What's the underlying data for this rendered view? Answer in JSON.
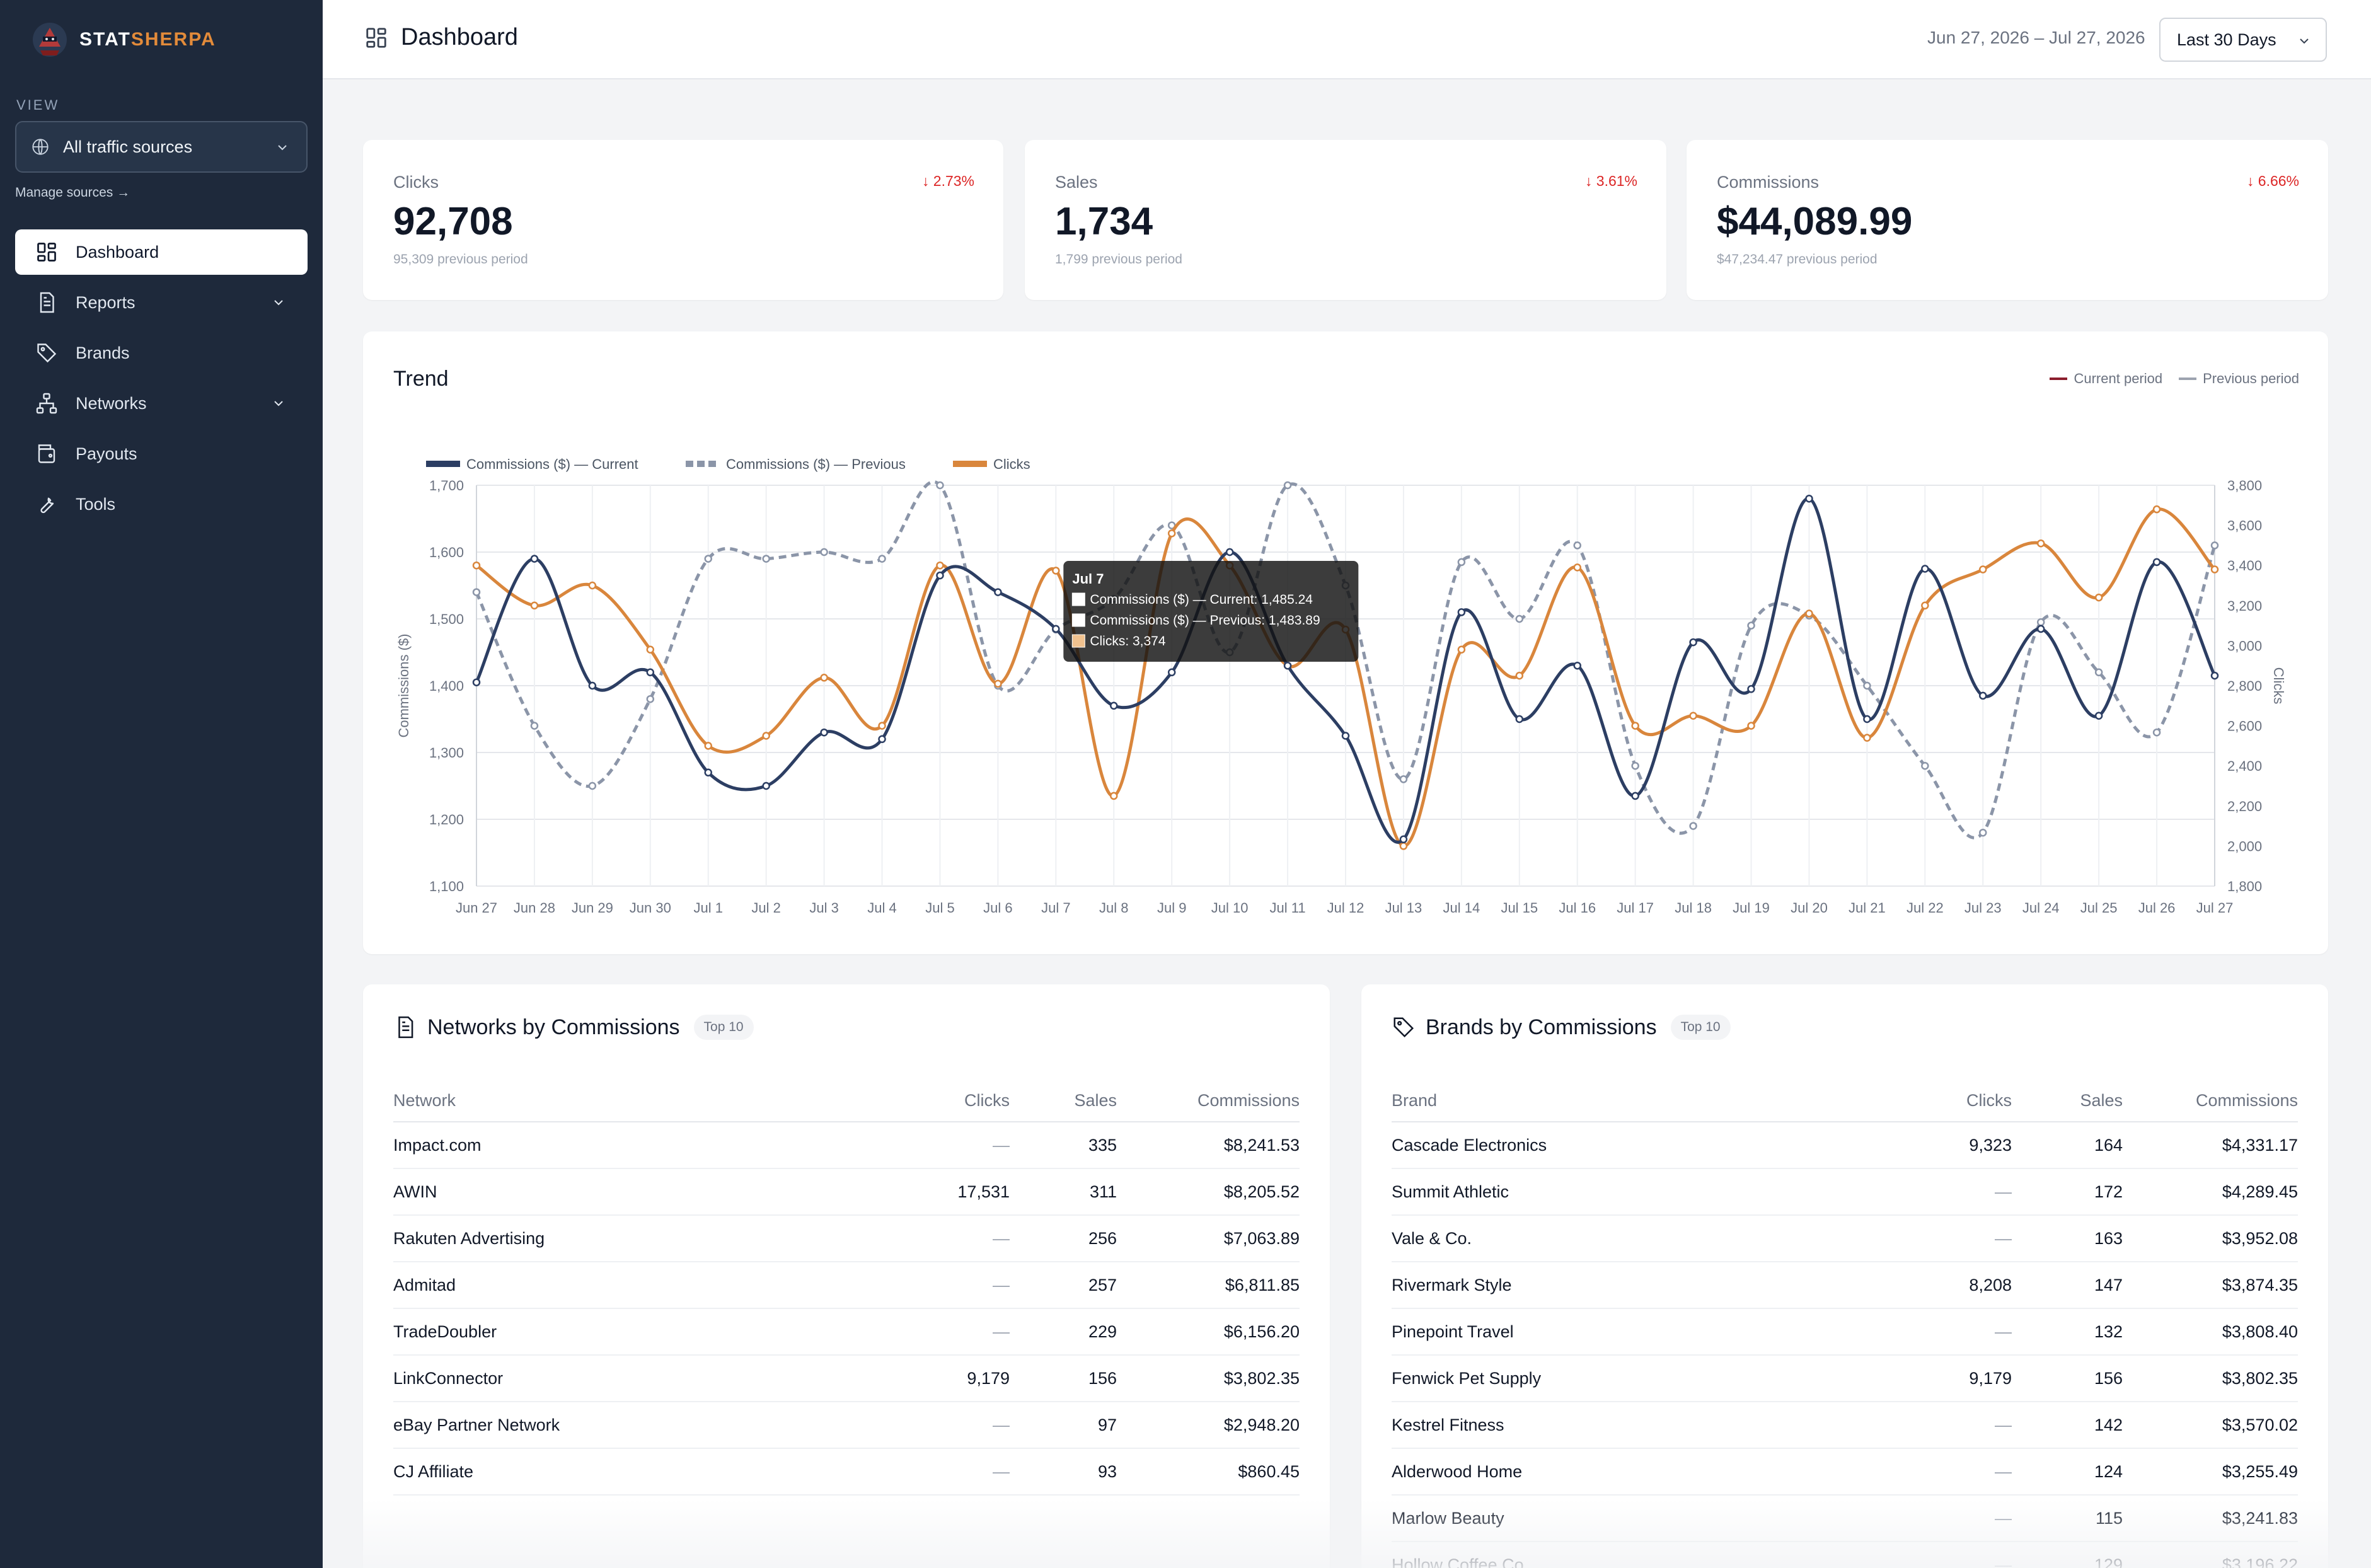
{
  "app": {
    "name_part1": "STAT",
    "name_part2": "SHERPA"
  },
  "sidebar": {
    "view_label": "VIEW",
    "source_select": "All traffic sources",
    "manage_sources": "Manage sources →",
    "items": [
      {
        "label": "Dashboard",
        "icon": "dashboard-icon"
      },
      {
        "label": "Reports",
        "icon": "document-icon"
      },
      {
        "label": "Brands",
        "icon": "tag-icon"
      },
      {
        "label": "Networks",
        "icon": "network-icon"
      },
      {
        "label": "Payouts",
        "icon": "wallet-icon"
      },
      {
        "label": "Tools",
        "icon": "wrench-icon"
      }
    ]
  },
  "header": {
    "title": "Dashboard",
    "date_range": "Jun 27, 2026 – Jul 27, 2026",
    "period": "Last 30 Days"
  },
  "stats": [
    {
      "label": "Clicks",
      "value": "92,708",
      "previous": "95,309 previous period",
      "delta": "↓ 2.73%"
    },
    {
      "label": "Sales",
      "value": "1,734",
      "previous": "1,799 previous period",
      "delta": "↓ 3.61%"
    },
    {
      "label": "Commissions",
      "value": "$44,089.99",
      "previous": "$47,234.47 previous period",
      "delta": "↓ 6.66%"
    }
  ],
  "trend": {
    "title": "Trend",
    "legend_current": "Current period",
    "legend_previous": "Previous period"
  },
  "colors": {
    "current": "#2c3e63",
    "previous": "#8b95a8",
    "clicks": "#d9863c",
    "sidebar": "#1e293b",
    "negative": "#dc2626"
  },
  "chart_data": {
    "type": "line",
    "x": [
      "Jun 27",
      "Jun 28",
      "Jun 29",
      "Jun 30",
      "Jul 1",
      "Jul 2",
      "Jul 3",
      "Jul 4",
      "Jul 5",
      "Jul 6",
      "Jul 7",
      "Jul 8",
      "Jul 9",
      "Jul 10",
      "Jul 11",
      "Jul 12",
      "Jul 13",
      "Jul 14",
      "Jul 15",
      "Jul 16",
      "Jul 17",
      "Jul 18",
      "Jul 19",
      "Jul 20",
      "Jul 21",
      "Jul 22",
      "Jul 23",
      "Jul 24",
      "Jul 25",
      "Jul 26",
      "Jul 27"
    ],
    "ylabel": "Commissions ($)",
    "y2label": "Clicks",
    "ylim": [
      1100,
      1700
    ],
    "y2lim": [
      1800,
      3800
    ],
    "y_ticks": [
      "1,100",
      "1,200",
      "1,300",
      "1,400",
      "1,500",
      "1,600",
      "1,700"
    ],
    "y2_ticks": [
      "1,800",
      "2,000",
      "2,200",
      "2,400",
      "2,600",
      "2,800",
      "3,000",
      "3,200",
      "3,400",
      "3,600",
      "3,800"
    ],
    "legend_position": "top-left",
    "grid": true,
    "series": [
      {
        "name": "Commissions ($) — Current",
        "axis": "left",
        "style": "solid",
        "values": [
          1405,
          1590,
          1400,
          1420,
          1270,
          1250,
          1330,
          1320,
          1565,
          1540,
          1485,
          1370,
          1420,
          1600,
          1430,
          1325,
          1170,
          1510,
          1350,
          1430,
          1235,
          1465,
          1395,
          1680,
          1350,
          1575,
          1385,
          1485,
          1355,
          1585,
          1415
        ]
      },
      {
        "name": "Commissions ($) — Previous",
        "axis": "left",
        "style": "dashed",
        "values": [
          1540,
          1340,
          1250,
          1380,
          1590,
          1590,
          1600,
          1590,
          1700,
          1400,
          1484,
          1530,
          1640,
          1450,
          1700,
          1550,
          1260,
          1585,
          1500,
          1610,
          1280,
          1190,
          1490,
          1505,
          1400,
          1280,
          1180,
          1495,
          1420,
          1330,
          1610
        ]
      },
      {
        "name": "Clicks",
        "axis": "right",
        "style": "solid",
        "values": [
          3400,
          3200,
          3300,
          2980,
          2500,
          2550,
          2840,
          2600,
          3400,
          2810,
          3374,
          2250,
          3560,
          3400,
          2900,
          3080,
          2000,
          2980,
          2850,
          3390,
          2600,
          2650,
          2600,
          3160,
          2540,
          3200,
          3380,
          3510,
          3240,
          3680,
          3380
        ]
      }
    ],
    "tooltip": {
      "title": "Jul 7",
      "lines": [
        "Commissions ($) — Current: 1,485.24",
        "Commissions ($) — Previous: 1,483.89",
        "Clicks: 3,374"
      ]
    }
  },
  "networks": {
    "title": "Networks by Commissions",
    "badge": "Top 10",
    "columns": [
      "Network",
      "Clicks",
      "Sales",
      "Commissions"
    ],
    "rows": [
      [
        "Impact.com",
        "—",
        "335",
        "$8,241.53"
      ],
      [
        "AWIN",
        "17,531",
        "311",
        "$8,205.52"
      ],
      [
        "Rakuten Advertising",
        "—",
        "256",
        "$7,063.89"
      ],
      [
        "Admitad",
        "—",
        "257",
        "$6,811.85"
      ],
      [
        "TradeDoubler",
        "—",
        "229",
        "$6,156.20"
      ],
      [
        "LinkConnector",
        "9,179",
        "156",
        "$3,802.35"
      ],
      [
        "eBay Partner Network",
        "—",
        "97",
        "$2,948.20"
      ],
      [
        "CJ Affiliate",
        "—",
        "93",
        "$860.45"
      ]
    ]
  },
  "brands": {
    "title": "Brands by Commissions",
    "badge": "Top 10",
    "columns": [
      "Brand",
      "Clicks",
      "Sales",
      "Commissions"
    ],
    "rows": [
      [
        "Cascade Electronics",
        "9,323",
        "164",
        "$4,331.17"
      ],
      [
        "Summit Athletic",
        "—",
        "172",
        "$4,289.45"
      ],
      [
        "Vale & Co.",
        "—",
        "163",
        "$3,952.08"
      ],
      [
        "Rivermark Style",
        "8,208",
        "147",
        "$3,874.35"
      ],
      [
        "Pinepoint Travel",
        "—",
        "132",
        "$3,808.40"
      ],
      [
        "Fenwick Pet Supply",
        "9,179",
        "156",
        "$3,802.35"
      ],
      [
        "Kestrel Fitness",
        "—",
        "142",
        "$3,570.02"
      ],
      [
        "Alderwood Home",
        "—",
        "124",
        "$3,255.49"
      ],
      [
        "Marlow Beauty",
        "—",
        "115",
        "$3,241.83"
      ],
      [
        "Hollow Coffee Co.",
        "—",
        "129",
        "$3,196.22"
      ]
    ]
  }
}
